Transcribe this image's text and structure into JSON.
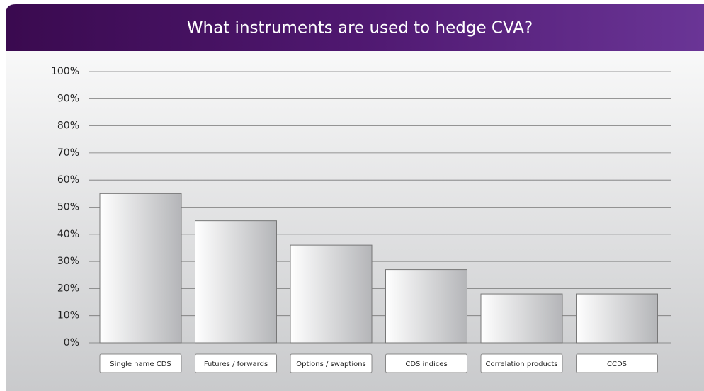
{
  "chart_data": {
    "type": "bar",
    "title": "What instruments are used to hedge CVA?",
    "categories": [
      "Single name CDS",
      "Futures / forwards",
      "Options / swaptions",
      "CDS indices",
      "Correlation products",
      "CCDS"
    ],
    "values": [
      55,
      45,
      36,
      27,
      18,
      18
    ],
    "ylim": [
      0,
      100
    ],
    "yticks": [
      {
        "value": 0,
        "label": "0%"
      },
      {
        "value": 10,
        "label": "10%"
      },
      {
        "value": 20,
        "label": "20%"
      },
      {
        "value": 30,
        "label": "30%"
      },
      {
        "value": 40,
        "label": "40%"
      },
      {
        "value": 50,
        "label": "50%"
      },
      {
        "value": 60,
        "label": "60%"
      },
      {
        "value": 70,
        "label": "70%"
      },
      {
        "value": 80,
        "label": "80%"
      },
      {
        "value": 90,
        "label": "90%"
      },
      {
        "value": 100,
        "label": "100%"
      }
    ],
    "grid": true
  }
}
